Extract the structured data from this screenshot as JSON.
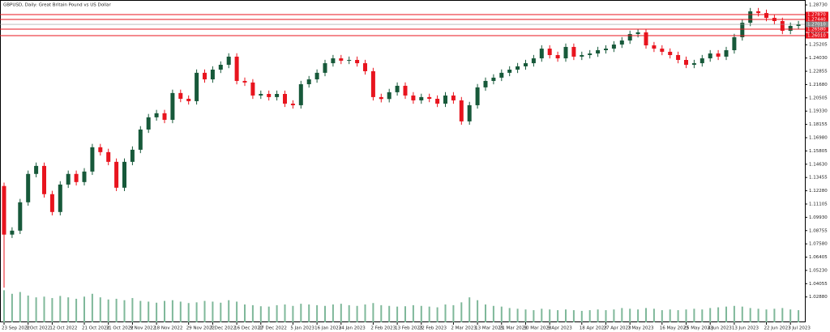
{
  "chart_data": {
    "type": "candlestick",
    "title": "GBPUSD, Daily: Great Britain Pound vs US Dollar",
    "up_color": "#17593a",
    "down_color": "#e8141e",
    "volume_color": "#7fb89a",
    "line_color": "#e8141e",
    "categories": [
      "23 Sep 2022",
      null,
      null,
      "3 Oct 2022",
      null,
      null,
      "12 Oct 2022",
      null,
      null,
      null,
      "21 Oct 2022",
      null,
      null,
      "31 Oct 2022",
      null,
      null,
      "9 Nov 2022",
      null,
      null,
      "18 Nov 2022",
      null,
      null,
      null,
      "29 Nov 2022",
      null,
      null,
      "7 Dec 2022",
      null,
      null,
      "16 Dec 2022",
      null,
      null,
      "27 Dec 2022",
      null,
      null,
      null,
      "5 Jan 2023",
      null,
      null,
      "16 Jan 2023",
      null,
      null,
      "24 Jan 2023",
      null,
      null,
      null,
      "2 Feb 2023",
      null,
      null,
      "13 Feb 2023",
      null,
      null,
      "22 Feb 2023",
      null,
      null,
      null,
      "2 Mar 2023",
      null,
      null,
      "13 Mar 2023",
      null,
      null,
      "21 Mar 2023",
      null,
      null,
      "30 Mar 2023",
      null,
      null,
      "9 Apr 2023",
      null,
      null,
      null,
      "18 Apr 2023",
      null,
      null,
      "27 Apr 2023",
      null,
      null,
      "7 May 2023",
      null,
      null,
      null,
      "16 May 2023",
      null,
      null,
      "25 May 2023",
      null,
      null,
      "4 Jun 2023",
      null,
      null,
      "13 Jun 2023",
      null,
      null,
      null,
      "22 Jun 2023",
      null,
      null,
      "3 Jul 2023",
      null
    ],
    "open": [
      1.127,
      1.084,
      1.0875,
      1.1126,
      1.1377,
      1.1448,
      1.1198,
      1.104,
      1.1283,
      1.1377,
      1.1305,
      1.1398,
      1.1613,
      1.157,
      1.1484,
      1.1255,
      1.1484,
      1.1591,
      1.177,
      1.1878,
      1.1914,
      1.1856,
      1.2093,
      1.2042,
      1.2021,
      1.2272,
      1.2214,
      1.23,
      1.2343,
      1.2415,
      1.22,
      1.2186,
      1.2071,
      1.2085,
      1.2057,
      1.2085,
      1.1999,
      1.1985,
      1.2171,
      1.2214,
      1.2272,
      1.2357,
      1.24,
      1.2379,
      1.2386,
      1.2357,
      1.2286,
      1.2057,
      1.204,
      1.21,
      1.2157,
      1.2071,
      1.2028,
      1.2057,
      1.2042,
      1.1999,
      1.2071,
      1.2028,
      1.1842,
      1.1985,
      1.2143,
      1.22,
      1.2229,
      1.2272,
      1.23,
      1.2329,
      1.2357,
      1.24,
      1.2486,
      1.2429,
      1.24,
      1.2501,
      1.2415,
      1.2429,
      1.2443,
      1.2472,
      1.2486,
      1.2522,
      1.2558,
      1.2615,
      1.263,
      1.2515,
      1.2486,
      1.2458,
      1.2429,
      1.2386,
      1.2343,
      1.2357,
      1.24,
      1.2443,
      1.2415,
      1.2472,
      1.2587,
      1.2715,
      1.2816,
      1.2801,
      1.2758,
      1.273,
      1.2644,
      1.2687
    ],
    "high": [
      1.13,
      1.0905,
      1.1156,
      1.1407,
      1.1478,
      1.1478,
      1.1228,
      1.1313,
      1.1407,
      1.1407,
      1.1428,
      1.1643,
      1.1643,
      1.16,
      1.1514,
      1.1514,
      1.1621,
      1.18,
      1.1908,
      1.1944,
      1.1944,
      1.2123,
      1.2123,
      1.2072,
      1.2302,
      1.2302,
      1.233,
      1.2373,
      1.2445,
      1.2445,
      1.223,
      1.2216,
      1.2115,
      1.2115,
      1.2115,
      1.2115,
      1.2029,
      1.2201,
      1.2244,
      1.2302,
      1.2387,
      1.243,
      1.243,
      1.2416,
      1.2416,
      1.2387,
      1.2316,
      1.2087,
      1.213,
      1.2187,
      1.2187,
      1.2101,
      1.2087,
      1.2087,
      1.2072,
      1.2101,
      1.2101,
      1.2058,
      1.2015,
      1.2173,
      1.223,
      1.2259,
      1.2302,
      1.233,
      1.2359,
      1.2387,
      1.243,
      1.2516,
      1.2516,
      1.2459,
      1.2531,
      1.2531,
      1.2459,
      1.2473,
      1.2502,
      1.2516,
      1.2552,
      1.2588,
      1.2645,
      1.266,
      1.266,
      1.2545,
      1.2516,
      1.2488,
      1.2459,
      1.2416,
      1.2387,
      1.243,
      1.2473,
      1.2473,
      1.2502,
      1.2617,
      1.2745,
      1.2846,
      1.2846,
      1.2831,
      1.2788,
      1.276,
      1.2717,
      1.2731
    ],
    "low": [
      1.037,
      1.081,
      1.0845,
      1.1096,
      1.1347,
      1.1168,
      1.101,
      1.101,
      1.1253,
      1.1275,
      1.1275,
      1.1368,
      1.154,
      1.1454,
      1.1225,
      1.1225,
      1.1454,
      1.1561,
      1.174,
      1.1848,
      1.1826,
      1.1826,
      1.2012,
      1.1991,
      1.1991,
      1.2184,
      1.2184,
      1.227,
      1.2313,
      1.217,
      1.2156,
      1.2041,
      1.2041,
      1.2027,
      1.2027,
      1.1969,
      1.1955,
      1.1955,
      1.2141,
      1.2184,
      1.2242,
      1.2327,
      1.2349,
      1.2349,
      1.2327,
      1.2256,
      1.2027,
      1.201,
      1.201,
      1.207,
      1.2041,
      1.1998,
      1.1998,
      1.2012,
      1.1969,
      1.1969,
      1.1998,
      1.1812,
      1.1812,
      1.1955,
      1.2113,
      1.217,
      1.2199,
      1.2242,
      1.227,
      1.2299,
      1.2327,
      1.237,
      1.2399,
      1.237,
      1.237,
      1.2385,
      1.2385,
      1.2399,
      1.2413,
      1.2442,
      1.2456,
      1.2492,
      1.2528,
      1.2585,
      1.2485,
      1.2456,
      1.2428,
      1.2399,
      1.2356,
      1.2313,
      1.2313,
      1.2327,
      1.237,
      1.2385,
      1.2385,
      1.2442,
      1.2557,
      1.2685,
      1.2771,
      1.2728,
      1.27,
      1.2614,
      1.2614,
      1.2657
    ],
    "close": [
      1.084,
      1.0875,
      1.1126,
      1.1377,
      1.1448,
      1.1198,
      1.104,
      1.1283,
      1.1377,
      1.1305,
      1.1398,
      1.1613,
      1.157,
      1.1484,
      1.1255,
      1.1484,
      1.1591,
      1.177,
      1.1878,
      1.1914,
      1.1856,
      1.2093,
      1.2042,
      1.2021,
      1.2272,
      1.2214,
      1.23,
      1.2343,
      1.2415,
      1.22,
      1.2186,
      1.2071,
      1.2085,
      1.2057,
      1.2085,
      1.1999,
      1.1985,
      1.2171,
      1.2214,
      1.2272,
      1.2357,
      1.24,
      1.2379,
      1.2386,
      1.2357,
      1.2286,
      1.2057,
      1.204,
      1.21,
      1.2157,
      1.2071,
      1.2028,
      1.2057,
      1.2042,
      1.1999,
      1.2071,
      1.2028,
      1.1842,
      1.1985,
      1.2143,
      1.22,
      1.2229,
      1.2272,
      1.23,
      1.2329,
      1.2357,
      1.24,
      1.2486,
      1.2429,
      1.24,
      1.2501,
      1.2415,
      1.2429,
      1.2443,
      1.2472,
      1.2486,
      1.2522,
      1.2558,
      1.2615,
      1.263,
      1.2515,
      1.2486,
      1.2458,
      1.2429,
      1.2386,
      1.2343,
      1.2357,
      1.24,
      1.2443,
      1.2415,
      1.2472,
      1.2587,
      1.2715,
      1.2816,
      1.2801,
      1.2758,
      1.273,
      1.2644,
      1.2687,
      1.2701
    ],
    "volume": [
      90,
      80,
      85,
      75,
      70,
      72,
      68,
      74,
      70,
      66,
      72,
      80,
      70,
      64,
      66,
      62,
      68,
      60,
      58,
      55,
      60,
      62,
      58,
      54,
      56,
      60,
      58,
      55,
      62,
      58,
      50,
      48,
      45,
      44,
      48,
      50,
      46,
      52,
      50,
      48,
      46,
      50,
      52,
      48,
      46,
      50,
      54,
      48,
      46,
      44,
      45,
      48,
      46,
      44,
      42,
      50,
      48,
      56,
      70,
      62,
      50,
      46,
      44,
      40,
      38,
      36,
      34,
      38,
      36,
      34,
      36,
      34,
      32,
      34,
      36,
      34,
      36,
      40,
      38,
      36,
      40,
      38,
      34,
      36,
      34,
      36,
      38,
      36,
      40,
      42,
      44,
      46,
      44,
      40,
      38,
      36,
      38,
      40,
      36,
      34
    ],
    "volume_ylim": [
      0,
      100
    ],
    "ylim": [
      1.0064,
      1.2902
    ],
    "yticks": [
      {
        "value": 1.2873,
        "label": "1.28730"
      },
      1.27555,
      {
        "value": 1.2638,
        "label": "1.26380"
      },
      1.25205,
      {
        "value": 1.2403,
        "label": "1.24030"
      },
      1.22855,
      {
        "value": 1.2168,
        "label": "1.21680"
      },
      1.20505,
      {
        "value": 1.1933,
        "label": "1.19330"
      },
      1.18155,
      {
        "value": 1.1698,
        "label": "1.16980"
      },
      1.15805,
      {
        "value": 1.1463,
        "label": "1.14630"
      },
      1.13455,
      {
        "value": 1.1228,
        "label": "1.12280"
      },
      1.11105,
      {
        "value": 1.0993,
        "label": "1.09930"
      },
      1.08755,
      {
        "value": 1.0758,
        "label": "1.07580"
      },
      1.06405,
      {
        "value": 1.0523,
        "label": "1.05230"
      },
      1.04055,
      {
        "value": 1.0288,
        "label": "1.02880"
      }
    ],
    "hlines": [
      {
        "value": 1.2787,
        "label": "1.27870"
      },
      {
        "value": 1.2744,
        "label": "1.27440"
      },
      {
        "value": 1.2658,
        "label": "1.26580"
      },
      {
        "value": 1.2601,
        "label": "1.26010"
      }
    ],
    "last_price": {
      "value": 1.2701,
      "label": "1.27010"
    }
  }
}
